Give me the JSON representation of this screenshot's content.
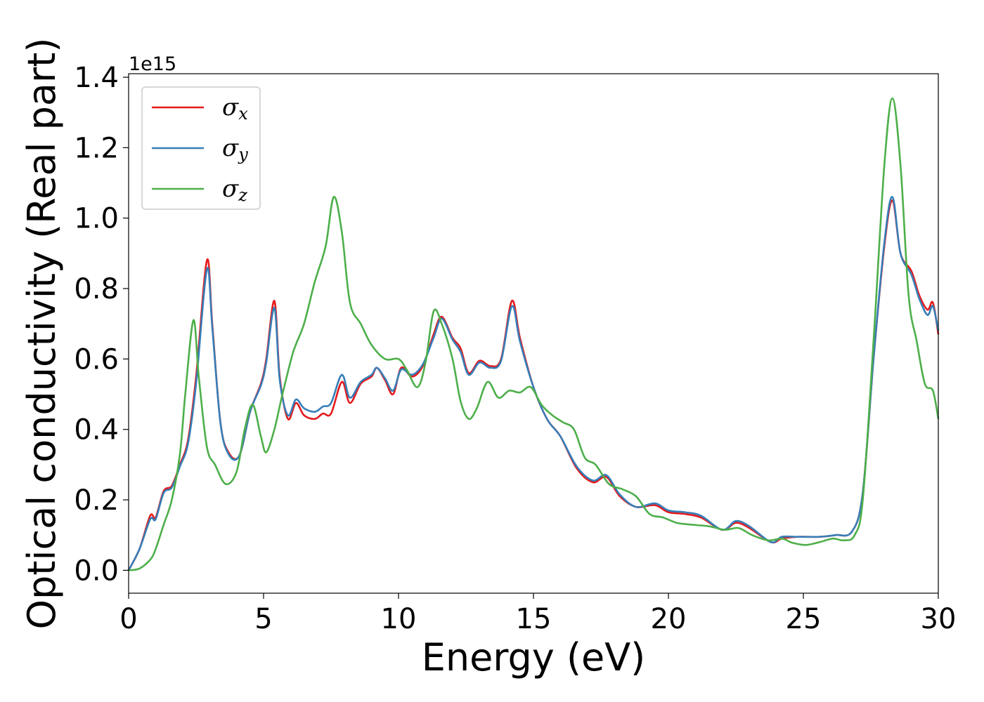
{
  "chart_data": {
    "type": "line",
    "xlabel": "Energy (eV)",
    "ylabel": "Optical conductivity (Real part)",
    "y_offset_label": "1e15",
    "xlim": [
      0,
      30
    ],
    "ylim": [
      -0.065,
      1.41
    ],
    "x_ticks": [
      0,
      5,
      10,
      15,
      20,
      25,
      30
    ],
    "x_tick_labels": [
      "0",
      "5",
      "10",
      "15",
      "20",
      "25",
      "30"
    ],
    "y_ticks": [
      0.0,
      0.2,
      0.4,
      0.6,
      0.8,
      1.0,
      1.2,
      1.4
    ],
    "y_tick_labels": [
      "0.0",
      "0.2",
      "0.4",
      "0.6",
      "0.8",
      "1.0",
      "1.2",
      "1.4"
    ],
    "grid": false,
    "legend_position": "top-left",
    "series": [
      {
        "name_main": "σ",
        "name_sub": "x",
        "color": "#e41a1c",
        "points": [
          [
            0,
            0
          ],
          [
            0.4,
            0.06
          ],
          [
            0.8,
            0.155
          ],
          [
            1.0,
            0.15
          ],
          [
            1.3,
            0.225
          ],
          [
            1.6,
            0.24
          ],
          [
            1.9,
            0.3
          ],
          [
            2.2,
            0.37
          ],
          [
            2.5,
            0.55
          ],
          [
            2.9,
            0.88
          ],
          [
            3.1,
            0.7
          ],
          [
            3.4,
            0.42
          ],
          [
            3.7,
            0.335
          ],
          [
            4.1,
            0.325
          ],
          [
            4.5,
            0.45
          ],
          [
            4.9,
            0.53
          ],
          [
            5.1,
            0.6
          ],
          [
            5.4,
            0.765
          ],
          [
            5.6,
            0.55
          ],
          [
            5.9,
            0.43
          ],
          [
            6.2,
            0.475
          ],
          [
            6.5,
            0.44
          ],
          [
            6.9,
            0.43
          ],
          [
            7.2,
            0.445
          ],
          [
            7.5,
            0.445
          ],
          [
            7.9,
            0.535
          ],
          [
            8.2,
            0.475
          ],
          [
            8.6,
            0.53
          ],
          [
            9.0,
            0.55
          ],
          [
            9.2,
            0.575
          ],
          [
            9.5,
            0.54
          ],
          [
            9.8,
            0.5
          ],
          [
            10.1,
            0.575
          ],
          [
            10.5,
            0.55
          ],
          [
            10.9,
            0.58
          ],
          [
            11.3,
            0.67
          ],
          [
            11.6,
            0.72
          ],
          [
            12.0,
            0.66
          ],
          [
            12.3,
            0.63
          ],
          [
            12.6,
            0.56
          ],
          [
            13.0,
            0.595
          ],
          [
            13.4,
            0.58
          ],
          [
            13.8,
            0.6
          ],
          [
            14.2,
            0.765
          ],
          [
            14.5,
            0.66
          ],
          [
            15.0,
            0.52
          ],
          [
            15.5,
            0.43
          ],
          [
            16.0,
            0.38
          ],
          [
            16.6,
            0.29
          ],
          [
            17.2,
            0.25
          ],
          [
            17.7,
            0.265
          ],
          [
            18.2,
            0.21
          ],
          [
            18.8,
            0.18
          ],
          [
            19.5,
            0.185
          ],
          [
            20.0,
            0.165
          ],
          [
            20.6,
            0.16
          ],
          [
            21.2,
            0.15
          ],
          [
            22.0,
            0.115
          ],
          [
            22.5,
            0.135
          ],
          [
            23.0,
            0.12
          ],
          [
            23.8,
            0.08
          ],
          [
            24.2,
            0.09
          ],
          [
            24.8,
            0.095
          ],
          [
            25.6,
            0.095
          ],
          [
            26.2,
            0.1
          ],
          [
            26.8,
            0.11
          ],
          [
            27.2,
            0.22
          ],
          [
            27.6,
            0.6
          ],
          [
            28.0,
            0.92
          ],
          [
            28.3,
            1.05
          ],
          [
            28.6,
            0.9
          ],
          [
            29.0,
            0.85
          ],
          [
            29.3,
            0.78
          ],
          [
            29.6,
            0.74
          ],
          [
            29.8,
            0.76
          ],
          [
            30.0,
            0.67
          ]
        ]
      },
      {
        "name_main": "σ",
        "name_sub": "y",
        "color": "#377eb8",
        "points": [
          [
            0,
            0
          ],
          [
            0.4,
            0.06
          ],
          [
            0.8,
            0.145
          ],
          [
            1.0,
            0.145
          ],
          [
            1.3,
            0.22
          ],
          [
            1.6,
            0.235
          ],
          [
            1.9,
            0.295
          ],
          [
            2.2,
            0.36
          ],
          [
            2.5,
            0.53
          ],
          [
            2.9,
            0.855
          ],
          [
            3.1,
            0.69
          ],
          [
            3.4,
            0.42
          ],
          [
            3.7,
            0.33
          ],
          [
            4.1,
            0.325
          ],
          [
            4.5,
            0.45
          ],
          [
            4.9,
            0.525
          ],
          [
            5.1,
            0.59
          ],
          [
            5.4,
            0.745
          ],
          [
            5.6,
            0.54
          ],
          [
            5.9,
            0.44
          ],
          [
            6.2,
            0.485
          ],
          [
            6.5,
            0.46
          ],
          [
            6.9,
            0.45
          ],
          [
            7.2,
            0.465
          ],
          [
            7.5,
            0.475
          ],
          [
            7.9,
            0.555
          ],
          [
            8.2,
            0.49
          ],
          [
            8.6,
            0.535
          ],
          [
            9.0,
            0.555
          ],
          [
            9.2,
            0.575
          ],
          [
            9.5,
            0.545
          ],
          [
            9.8,
            0.51
          ],
          [
            10.1,
            0.57
          ],
          [
            10.5,
            0.555
          ],
          [
            10.9,
            0.585
          ],
          [
            11.3,
            0.66
          ],
          [
            11.6,
            0.715
          ],
          [
            12.0,
            0.655
          ],
          [
            12.3,
            0.62
          ],
          [
            12.6,
            0.555
          ],
          [
            13.0,
            0.59
          ],
          [
            13.4,
            0.575
          ],
          [
            13.8,
            0.595
          ],
          [
            14.2,
            0.75
          ],
          [
            14.5,
            0.65
          ],
          [
            15.0,
            0.52
          ],
          [
            15.5,
            0.43
          ],
          [
            16.0,
            0.38
          ],
          [
            16.6,
            0.295
          ],
          [
            17.2,
            0.255
          ],
          [
            17.7,
            0.27
          ],
          [
            18.2,
            0.215
          ],
          [
            18.8,
            0.18
          ],
          [
            19.5,
            0.19
          ],
          [
            20.0,
            0.17
          ],
          [
            20.6,
            0.165
          ],
          [
            21.2,
            0.155
          ],
          [
            22.0,
            0.115
          ],
          [
            22.5,
            0.14
          ],
          [
            23.0,
            0.125
          ],
          [
            23.8,
            0.08
          ],
          [
            24.2,
            0.095
          ],
          [
            24.8,
            0.095
          ],
          [
            25.6,
            0.095
          ],
          [
            26.2,
            0.1
          ],
          [
            26.8,
            0.11
          ],
          [
            27.2,
            0.22
          ],
          [
            27.6,
            0.6
          ],
          [
            28.0,
            0.93
          ],
          [
            28.3,
            1.06
          ],
          [
            28.6,
            0.9
          ],
          [
            29.0,
            0.84
          ],
          [
            29.3,
            0.77
          ],
          [
            29.6,
            0.725
          ],
          [
            29.8,
            0.75
          ],
          [
            30.0,
            0.68
          ]
        ]
      },
      {
        "name_main": "σ",
        "name_sub": "z",
        "color": "#4daf4a",
        "points": [
          [
            0,
            0
          ],
          [
            0.4,
            0.005
          ],
          [
            0.8,
            0.03
          ],
          [
            1.0,
            0.06
          ],
          [
            1.3,
            0.13
          ],
          [
            1.6,
            0.2
          ],
          [
            1.9,
            0.33
          ],
          [
            2.1,
            0.5
          ],
          [
            2.4,
            0.71
          ],
          [
            2.6,
            0.55
          ],
          [
            2.9,
            0.35
          ],
          [
            3.2,
            0.3
          ],
          [
            3.6,
            0.245
          ],
          [
            4.0,
            0.28
          ],
          [
            4.3,
            0.4
          ],
          [
            4.6,
            0.47
          ],
          [
            4.9,
            0.38
          ],
          [
            5.1,
            0.335
          ],
          [
            5.4,
            0.4
          ],
          [
            5.7,
            0.5
          ],
          [
            6.1,
            0.62
          ],
          [
            6.5,
            0.7
          ],
          [
            6.9,
            0.82
          ],
          [
            7.3,
            0.92
          ],
          [
            7.6,
            1.06
          ],
          [
            7.9,
            0.96
          ],
          [
            8.2,
            0.76
          ],
          [
            8.6,
            0.7
          ],
          [
            9.0,
            0.64
          ],
          [
            9.5,
            0.6
          ],
          [
            10.0,
            0.6
          ],
          [
            10.3,
            0.57
          ],
          [
            10.7,
            0.52
          ],
          [
            11.0,
            0.59
          ],
          [
            11.3,
            0.735
          ],
          [
            11.6,
            0.7
          ],
          [
            12.0,
            0.6
          ],
          [
            12.3,
            0.48
          ],
          [
            12.6,
            0.43
          ],
          [
            12.9,
            0.46
          ],
          [
            13.3,
            0.535
          ],
          [
            13.7,
            0.49
          ],
          [
            14.1,
            0.51
          ],
          [
            14.5,
            0.505
          ],
          [
            14.9,
            0.52
          ],
          [
            15.3,
            0.47
          ],
          [
            15.7,
            0.44
          ],
          [
            16.1,
            0.42
          ],
          [
            16.5,
            0.4
          ],
          [
            16.9,
            0.32
          ],
          [
            17.3,
            0.3
          ],
          [
            17.8,
            0.245
          ],
          [
            18.3,
            0.23
          ],
          [
            18.8,
            0.21
          ],
          [
            19.3,
            0.16
          ],
          [
            19.8,
            0.15
          ],
          [
            20.3,
            0.135
          ],
          [
            20.8,
            0.13
          ],
          [
            21.5,
            0.125
          ],
          [
            22.1,
            0.115
          ],
          [
            22.6,
            0.12
          ],
          [
            23.1,
            0.1
          ],
          [
            23.7,
            0.085
          ],
          [
            24.2,
            0.09
          ],
          [
            24.6,
            0.078
          ],
          [
            25.1,
            0.072
          ],
          [
            25.6,
            0.08
          ],
          [
            26.1,
            0.09
          ],
          [
            26.5,
            0.085
          ],
          [
            26.9,
            0.1
          ],
          [
            27.2,
            0.2
          ],
          [
            27.6,
            0.65
          ],
          [
            28.0,
            1.15
          ],
          [
            28.3,
            1.34
          ],
          [
            28.6,
            1.15
          ],
          [
            28.9,
            0.78
          ],
          [
            29.2,
            0.65
          ],
          [
            29.5,
            0.53
          ],
          [
            29.8,
            0.51
          ],
          [
            30.0,
            0.43
          ]
        ]
      }
    ]
  }
}
